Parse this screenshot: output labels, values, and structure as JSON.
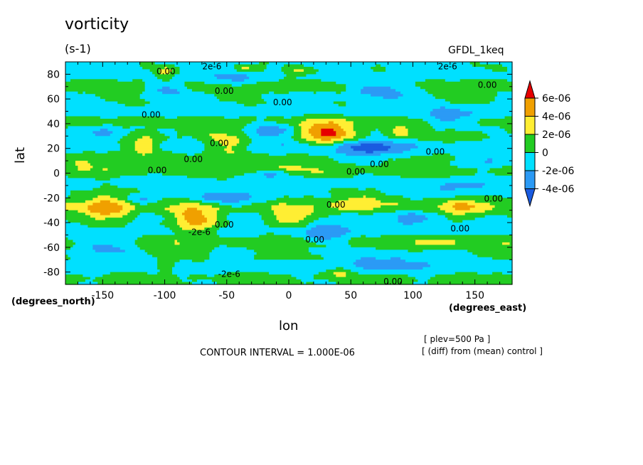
{
  "header": {
    "title": "vorticity",
    "units": "(s-1)",
    "dataset": "GFDL_1keq"
  },
  "axes": {
    "ylabel": "lat",
    "xlabel": "lon",
    "y_units": "(degrees_north)",
    "x_units": "(degrees_east)"
  },
  "footer": {
    "contour_interval": "CONTOUR INTERVAL = 1.000E-06",
    "condition_1": "[ plev=500 Pa ]",
    "condition_2": "[ (diff) from (mean) control ]"
  },
  "colors": {
    "ge_6e-06": "#e60000",
    "4e-06_6e-06": "#f0a000",
    "2e-06_4e-06": "#ffee33",
    "0_2e-06": "#22cc22",
    "-2e-06_0": "#00e0ff",
    "-4e-06_-2e-06": "#2b9af5",
    "lt_-4e-06": "#1a5be0"
  },
  "chart_data": {
    "type": "heatmap",
    "title": "vorticity",
    "subtitle": "(s-1)",
    "xlabel": "lon",
    "ylabel": "lat",
    "xlim": [
      -180,
      180
    ],
    "ylim": [
      -90,
      90
    ],
    "x_ticks": [
      "-150",
      "-100",
      "-50",
      "0",
      "50",
      "100",
      "150"
    ],
    "x_tick_values": [
      -150,
      -100,
      -50,
      0,
      50,
      100,
      150
    ],
    "y_ticks": [
      "80",
      "60",
      "40",
      "20",
      "0",
      "-20",
      "-40",
      "-60",
      "-80"
    ],
    "y_tick_values": [
      80,
      60,
      40,
      20,
      0,
      -20,
      -40,
      -60,
      -80
    ],
    "colorbar": {
      "labels": [
        "6e-06",
        "4e-06",
        "2e-06",
        "0",
        "-2e-06",
        "-4e-06"
      ],
      "levels": [
        6e-06,
        4e-06,
        2e-06,
        0,
        -2e-06,
        -4e-06
      ]
    },
    "contour_labels": [
      {
        "text": "0.00",
        "lon": -99,
        "lat": 82
      },
      {
        "text": "0.00",
        "lon": -52,
        "lat": 66
      },
      {
        "text": "0.00",
        "lon": -5,
        "lat": 57
      },
      {
        "text": "0.00",
        "lon": -111,
        "lat": 47
      },
      {
        "text": "0.00",
        "lon": -56,
        "lat": 24
      },
      {
        "text": "0.00",
        "lon": -77,
        "lat": 11
      },
      {
        "text": "0.00",
        "lon": -106,
        "lat": 2
      },
      {
        "text": "0.00",
        "lon": 118,
        "lat": 17
      },
      {
        "text": "0.00",
        "lon": 73,
        "lat": 7
      },
      {
        "text": "0.00",
        "lon": 54,
        "lat": 1
      },
      {
        "text": "0.00",
        "lon": 160,
        "lat": 71
      },
      {
        "text": "0.00",
        "lon": 165,
        "lat": -21
      },
      {
        "text": "0.00",
        "lon": 38,
        "lat": -26
      },
      {
        "text": "0.00",
        "lon": -52,
        "lat": -42
      },
      {
        "text": "0.00",
        "lon": 21,
        "lat": -54
      },
      {
        "text": "0.00",
        "lon": 138,
        "lat": -45
      },
      {
        "text": "0.00",
        "lon": 84,
        "lat": -88
      },
      {
        "text": "2e-6",
        "lon": -62,
        "lat": 86
      },
      {
        "text": "2e-6",
        "lon": 128,
        "lat": 86
      },
      {
        "text": "-2e-6",
        "lon": -72,
        "lat": -48
      },
      {
        "text": "-2e-6",
        "lon": -48,
        "lat": -82
      }
    ],
    "features": [
      {
        "lon": 30,
        "lat": 32,
        "peak": 5.5e-06,
        "wlon": 15,
        "wlat": 8
      },
      {
        "lon": -75,
        "lat": -38,
        "peak": 5e-06,
        "wlon": 13,
        "wlat": 8
      },
      {
        "lon": -145,
        "lat": -28,
        "peak": 5e-06,
        "wlon": 14,
        "wlat": 8
      },
      {
        "lon": 140,
        "lat": -28,
        "peak": 4.2e-06,
        "wlon": 13,
        "wlat": 6
      },
      {
        "lon": -117,
        "lat": 22,
        "peak": 3.8e-06,
        "wlon": 11,
        "wlat": 6
      },
      {
        "lon": -50,
        "lat": 22,
        "peak": 3.2e-06,
        "wlon": 12,
        "wlat": 6
      },
      {
        "lon": 90,
        "lat": 33,
        "peak": 3e-06,
        "wlon": 7,
        "wlat": 5
      },
      {
        "lon": -15,
        "lat": 4,
        "peak": 3.2e-06,
        "wlon": 15,
        "wlat": 3
      },
      {
        "lon": 55,
        "lat": -23,
        "peak": 3e-06,
        "wlon": 15,
        "wlat": 6
      },
      {
        "lon": 0,
        "lat": -36,
        "peak": 3e-06,
        "wlon": 14,
        "wlat": 6
      },
      {
        "lon": -165,
        "lat": 10,
        "peak": 1.2e-06,
        "wlon": 20,
        "wlat": 5
      },
      {
        "lon": -100,
        "lat": 82,
        "peak": 3e-06,
        "wlon": 6,
        "wlat": 3
      },
      {
        "lon": 10,
        "lat": 83,
        "peak": 3e-06,
        "wlon": 8,
        "wlat": 3
      },
      {
        "lon": -35,
        "lat": 85,
        "peak": 3e-06,
        "wlon": 5,
        "wlat": 2
      },
      {
        "lon": 40,
        "lat": -80,
        "peak": 3e-06,
        "wlon": 7,
        "wlat": 3
      },
      {
        "lon": -100,
        "lat": -75,
        "peak": 3e-06,
        "wlon": 5,
        "wlat": 3
      },
      {
        "lon": 120,
        "lat": -56,
        "peak": 2.3e-06,
        "wlon": 15,
        "wlat": 4
      },
      {
        "lon": 60,
        "lat": 20,
        "peak": -4.5e-06,
        "wlon": 22,
        "wlat": 5
      },
      {
        "lon": -15,
        "lat": 1,
        "peak": -4e-06,
        "wlon": 10,
        "wlat": 3
      },
      {
        "lon": -50,
        "lat": -20,
        "peak": -3e-06,
        "wlon": 20,
        "wlat": 4
      },
      {
        "lon": -120,
        "lat": -22,
        "peak": -2.5e-06,
        "wlon": 10,
        "wlat": 3
      },
      {
        "lon": -150,
        "lat": 32,
        "peak": -3.5e-06,
        "wlon": 15,
        "wlat": 5
      },
      {
        "lon": -15,
        "lat": 34,
        "peak": -3e-06,
        "wlon": 15,
        "wlat": 5
      },
      {
        "lon": 130,
        "lat": 43,
        "peak": -3e-06,
        "wlon": 15,
        "wlat": 6
      },
      {
        "lon": 70,
        "lat": 68,
        "peak": -3.5e-06,
        "wlon": 20,
        "wlat": 6
      },
      {
        "lon": -100,
        "lat": 68,
        "peak": -3e-06,
        "wlon": 12,
        "wlat": 4
      },
      {
        "lon": -45,
        "lat": 75,
        "peak": -2.5e-06,
        "wlon": 15,
        "wlat": 4
      },
      {
        "lon": 100,
        "lat": -36,
        "peak": -3e-06,
        "wlon": 15,
        "wlat": 5
      },
      {
        "lon": 30,
        "lat": -48,
        "peak": -3e-06,
        "wlon": 12,
        "wlat": 6
      },
      {
        "lon": -150,
        "lat": -60,
        "peak": -2.5e-06,
        "wlon": 20,
        "wlat": 6
      },
      {
        "lon": 80,
        "lat": -70,
        "peak": -2.5e-06,
        "wlon": 25,
        "wlat": 6
      },
      {
        "lon": 165,
        "lat": 10,
        "peak": -2e-06,
        "wlon": 15,
        "wlat": 4
      },
      {
        "lon": 130,
        "lat": -12,
        "peak": -2e-06,
        "wlon": 20,
        "wlat": 4
      }
    ]
  }
}
